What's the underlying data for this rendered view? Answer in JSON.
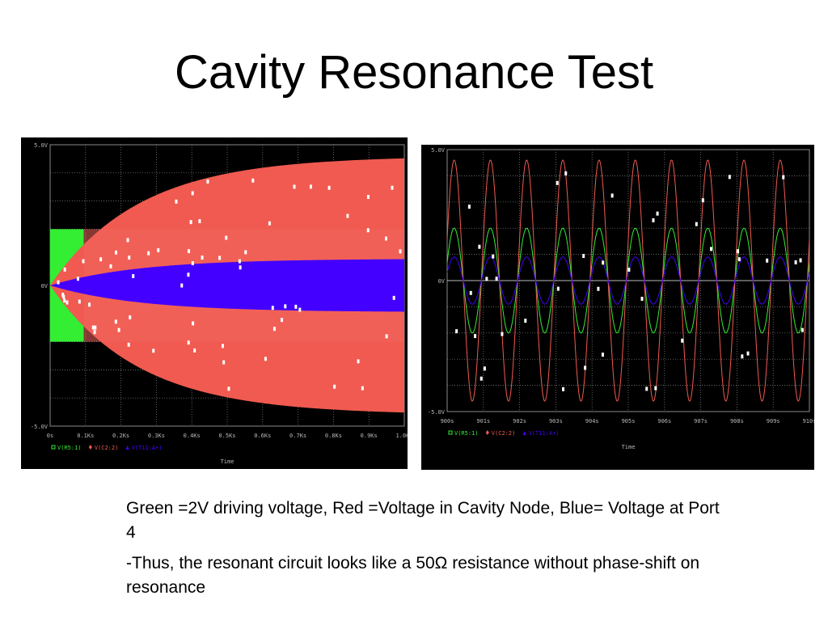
{
  "slide": {
    "title": "Cavity Resonance Test",
    "caption_line1": "Green =2V driving voltage, Red =Voltage in Cavity Node, Blue= Voltage at Port 4",
    "caption_line2": "-Thus, the resonant circuit looks like a 50Ω resistance without phase-shift on resonance"
  },
  "colors": {
    "background": "#000000",
    "grid": "#8a8a8a",
    "green": "#33ee33",
    "red": "#f05a50",
    "blue": "#4400ff",
    "text": "#b8b8b8"
  },
  "chart_data": [
    {
      "type": "line",
      "title": "",
      "xlabel": "Time",
      "ylabel": "",
      "y_tick_labels": [
        "5.0V",
        "0V",
        "-5.0V"
      ],
      "x_tick_labels": [
        "0s",
        "0.1Ks",
        "0.2Ks",
        "0.3Ks",
        "0.4Ks",
        "0.5Ks",
        "0.6Ks",
        "0.7Ks",
        "0.8Ks",
        "0.9Ks",
        "1.0Ks"
      ],
      "x_range": [
        0,
        1000
      ],
      "y_range": [
        -5,
        5
      ],
      "legend": [
        "V(R5:1)",
        "V(C2:2)",
        "V(T11:A+)"
      ],
      "legend_placement": "bottom-left",
      "grid": true,
      "series": [
        {
          "name": "V(R5:1)",
          "color": "#33ee33",
          "envelope_amplitude": 2.0,
          "active_until_x": 95
        },
        {
          "name": "V(C2:2)",
          "color": "#f05a50",
          "envelope_final": 4.6,
          "envelope_tau": 250
        },
        {
          "name": "V(T11:A+)",
          "color": "#4400ff",
          "envelope_final": 0.95,
          "envelope_tau": 250
        }
      ]
    },
    {
      "type": "line",
      "title": "",
      "xlabel": "Time",
      "ylabel": "",
      "y_tick_labels": [
        "5.0V",
        "0V",
        "-5.0V"
      ],
      "x_tick_labels": [
        "900s",
        "901s",
        "902s",
        "903s",
        "904s",
        "905s",
        "906s",
        "907s",
        "908s",
        "909s",
        "910s"
      ],
      "x_range": [
        900,
        910
      ],
      "y_range": [
        -5,
        5
      ],
      "legend": [
        "V(R5:1)",
        "V(C2:2)",
        "V(T11:A+)"
      ],
      "legend_placement": "bottom-left",
      "grid": true,
      "series": [
        {
          "name": "V(R5:1)",
          "color": "#33ee33",
          "amplitude": 2.0,
          "period": 1.0
        },
        {
          "name": "V(C2:2)",
          "color": "#f05a50",
          "amplitude": 4.6,
          "period": 1.0
        },
        {
          "name": "V(T11:A+)",
          "color": "#4400ff",
          "amplitude": 0.9,
          "period": 1.0
        }
      ]
    }
  ]
}
